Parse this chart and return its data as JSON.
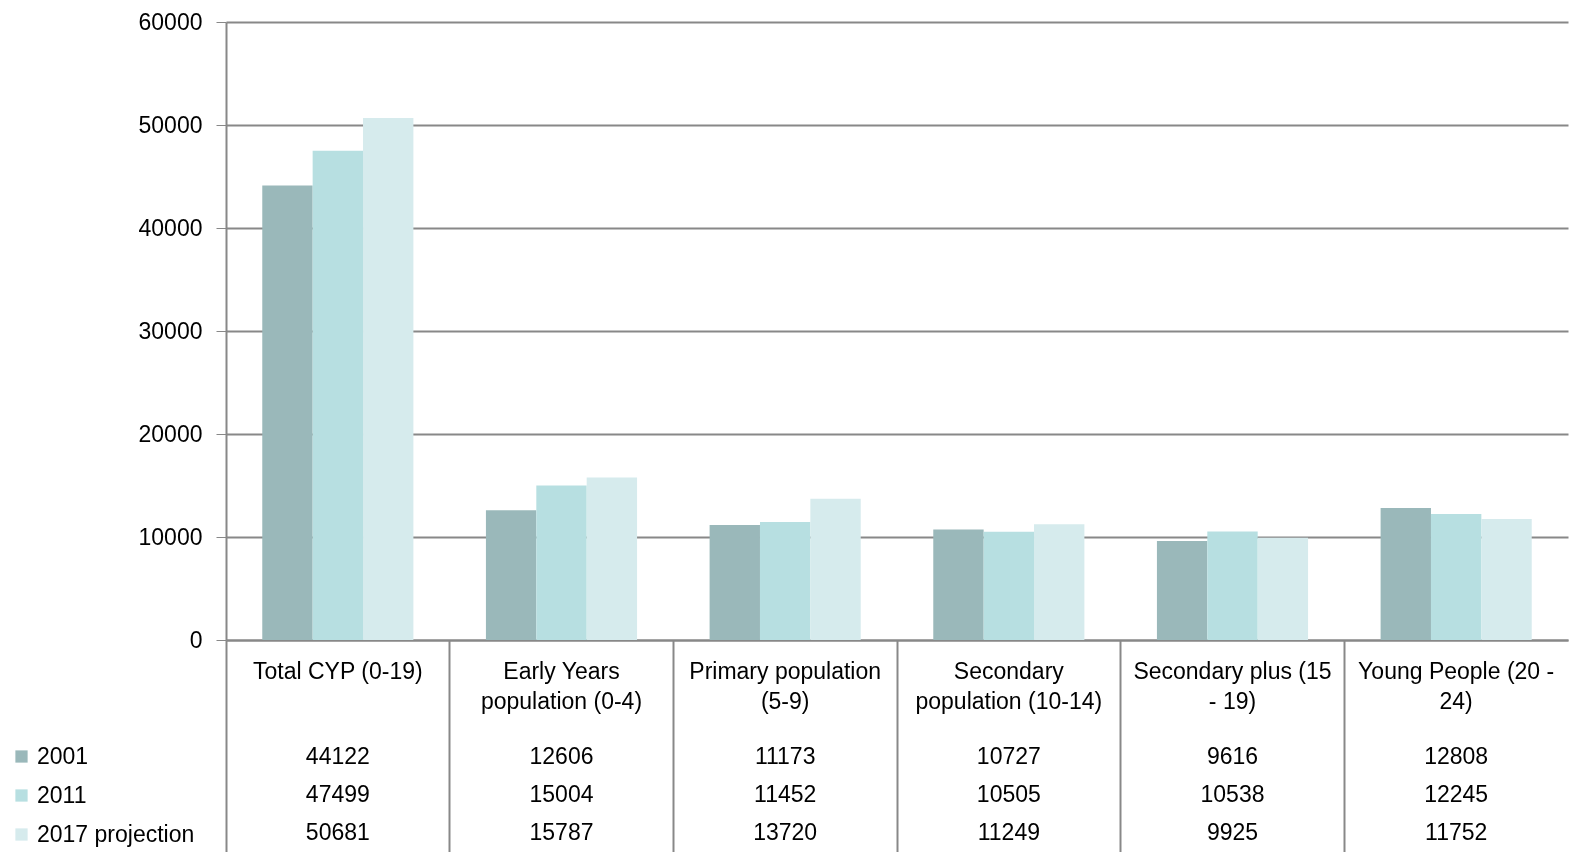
{
  "chart_data": {
    "type": "bar",
    "categories": [
      "Total CYP (0-19)",
      "Early Years population (0-4)",
      "Primary population (5-9)",
      "Secondary population (10-14)",
      "Secondary plus (15 - 19)",
      "Young People (20 - 24)"
    ],
    "series": [
      {
        "name": "2001",
        "color": "#9ab8ba",
        "values": [
          44122,
          12606,
          11173,
          10727,
          9616,
          12808
        ]
      },
      {
        "name": "2011",
        "color": "#b7dfe1",
        "values": [
          47499,
          15004,
          11452,
          10505,
          10538,
          12245
        ]
      },
      {
        "name": "2017 projection",
        "color": "#d6ebed",
        "values": [
          50681,
          15787,
          13720,
          11249,
          9925,
          11752
        ]
      }
    ],
    "ylim": [
      0,
      60000
    ],
    "yticks": [
      0,
      10000,
      20000,
      30000,
      40000,
      50000,
      60000
    ],
    "grid": "y",
    "legend": "bottom left",
    "data_labels": true
  }
}
